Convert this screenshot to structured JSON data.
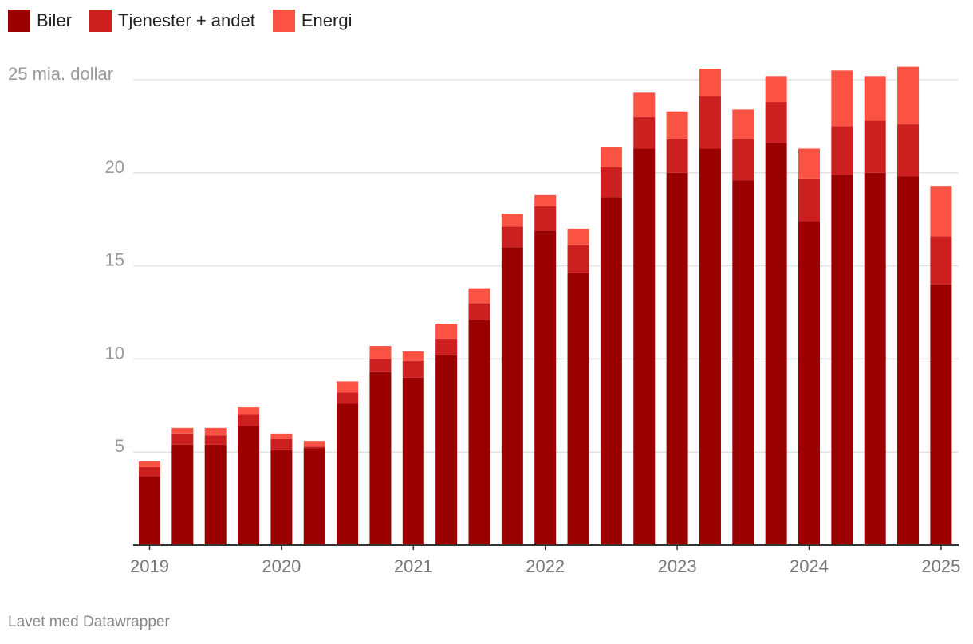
{
  "chart_data": {
    "type": "bar",
    "stacked": true,
    "categories": [
      "2019 Q1",
      "2019 Q2",
      "2019 Q3",
      "2019 Q4",
      "2020 Q1",
      "2020 Q2",
      "2020 Q3",
      "2020 Q4",
      "2021 Q1",
      "2021 Q2",
      "2021 Q3",
      "2021 Q4",
      "2022 Q1",
      "2022 Q2",
      "2022 Q3",
      "2022 Q4",
      "2023 Q1",
      "2023 Q2",
      "2023 Q3",
      "2023 Q4",
      "2024 Q1",
      "2024 Q2",
      "2024 Q3",
      "2024 Q4",
      "2025 Q1"
    ],
    "x_tick_labels": [
      "2019",
      "2020",
      "2021",
      "2022",
      "2023",
      "2024",
      "2025"
    ],
    "y_tick_labels": [
      "25 mia. dollar",
      "20",
      "15",
      "10",
      "5"
    ],
    "y_ticks": [
      25,
      20,
      15,
      10,
      5
    ],
    "ylim": [
      0,
      25
    ],
    "grid": true,
    "legend_position": "top-left",
    "series": [
      {
        "name": "Biler",
        "color": "#9b0000",
        "values": [
          3.7,
          5.4,
          5.4,
          6.4,
          5.1,
          5.2,
          7.6,
          9.3,
          9.0,
          10.2,
          12.1,
          16.0,
          16.9,
          14.6,
          18.7,
          21.3,
          20.0,
          21.3,
          19.6,
          21.6,
          17.4,
          19.9,
          20.0,
          19.8,
          14.0
        ]
      },
      {
        "name": "Tjenester + andet",
        "color": "#cc2020",
        "values": [
          0.5,
          0.6,
          0.5,
          0.6,
          0.6,
          0.1,
          0.6,
          0.7,
          0.9,
          0.9,
          0.9,
          1.1,
          1.3,
          1.5,
          1.6,
          1.7,
          1.8,
          2.8,
          2.2,
          2.2,
          2.3,
          2.6,
          2.8,
          2.8,
          2.6
        ]
      },
      {
        "name": "Energi",
        "color": "#fa5343",
        "values": [
          0.3,
          0.3,
          0.4,
          0.4,
          0.3,
          0.3,
          0.6,
          0.7,
          0.5,
          0.8,
          0.8,
          0.7,
          0.6,
          0.9,
          1.1,
          1.3,
          1.5,
          1.5,
          1.6,
          1.4,
          1.6,
          3.0,
          2.4,
          3.1,
          2.7
        ]
      }
    ]
  },
  "footer": {
    "credit": "Lavet med Datawrapper"
  }
}
